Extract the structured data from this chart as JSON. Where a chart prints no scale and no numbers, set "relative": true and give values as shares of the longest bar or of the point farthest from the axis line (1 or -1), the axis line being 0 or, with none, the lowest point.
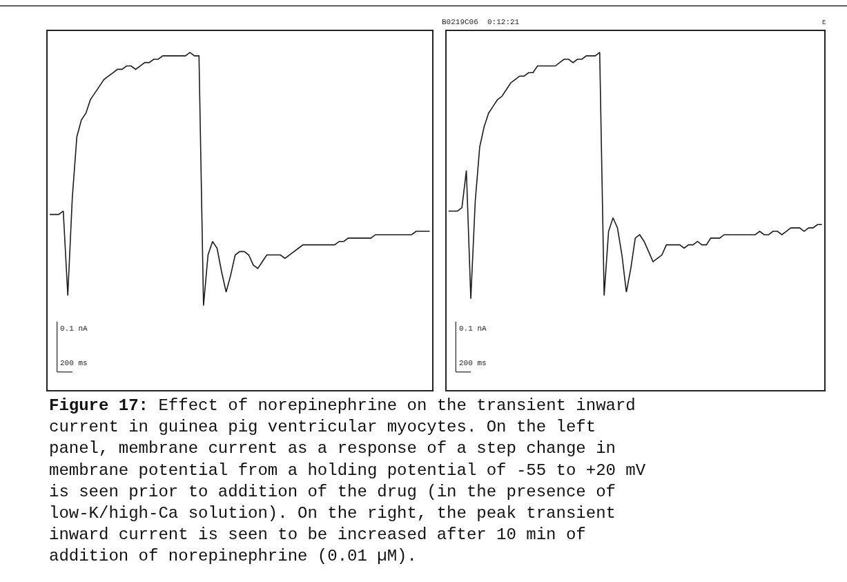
{
  "chart_data": [
    {
      "type": "line",
      "relative": true,
      "categories": [
        null,
        null,
        null,
        null,
        null,
        null,
        null,
        null,
        null,
        null,
        null,
        null,
        null,
        null,
        null,
        null,
        null,
        null,
        null,
        null,
        null,
        null,
        null,
        null,
        null,
        null,
        null,
        null,
        null,
        null,
        null,
        null,
        null,
        null,
        null,
        null,
        null,
        null,
        null,
        null,
        null,
        null,
        null,
        null,
        null,
        null,
        null,
        null,
        null,
        null,
        null,
        null,
        null,
        null,
        null,
        null,
        null,
        null,
        null,
        null,
        null,
        null,
        null,
        null,
        null,
        null,
        null,
        null,
        null,
        null,
        null,
        null,
        null,
        null,
        null,
        null,
        null,
        null,
        null,
        null,
        null,
        null,
        null,
        null,
        null
      ],
      "series": [
        {
          "color": "#1a1a1a",
          "values": [
            0.52,
            0.52,
            0.52,
            0.53,
            0.28,
            0.57,
            0.75,
            0.8,
            0.82,
            0.86,
            0.88,
            0.9,
            0.92,
            0.93,
            0.94,
            0.95,
            0.95,
            0.96,
            0.96,
            0.95,
            0.96,
            0.97,
            0.97,
            0.98,
            0.98,
            0.99,
            0.99,
            0.99,
            0.99,
            0.99,
            0.99,
            1.0,
            0.99,
            0.99,
            0.25,
            0.4,
            0.44,
            0.42,
            0.35,
            0.29,
            0.34,
            0.4,
            0.41,
            0.41,
            0.4,
            0.37,
            0.36,
            0.38,
            0.4,
            0.4,
            0.4,
            0.4,
            0.39,
            0.4,
            0.41,
            0.42,
            0.43,
            0.43,
            0.43,
            0.43,
            0.43,
            0.43,
            0.43,
            0.43,
            0.44,
            0.44,
            0.45,
            0.45,
            0.45,
            0.45,
            0.45,
            0.45,
            0.46,
            0.46,
            0.46,
            0.46,
            0.46,
            0.46,
            0.46,
            0.46,
            0.46,
            0.47,
            0.47,
            0.47,
            0.47
          ]
        }
      ],
      "annotations": [
        "0.1 nA",
        "200 ms",
        "Figure 17: Effect of norepinephrine on the transient inward current in guinea pig ventricular myocytes. On the left panel, membrane current as a response of a step change in membrane potential from a holding potential of -55 to +20 mV is seen prior to addition of the drug (in the presence of low-K/high-Ca solution). On the right, the peak transient inward current is seen to be increased after 10 min of addition of norepinephrine (0.01 µM)."
      ]
    },
    {
      "type": "line",
      "relative": true,
      "categories": [
        null,
        null,
        null,
        null,
        null,
        null,
        null,
        null,
        null,
        null,
        null,
        null,
        null,
        null,
        null,
        null,
        null,
        null,
        null,
        null,
        null,
        null,
        null,
        null,
        null,
        null,
        null,
        null,
        null,
        null,
        null,
        null,
        null,
        null,
        null,
        null,
        null,
        null,
        null,
        null,
        null,
        null,
        null,
        null,
        null,
        null,
        null,
        null,
        null,
        null,
        null,
        null,
        null,
        null,
        null,
        null,
        null,
        null,
        null,
        null,
        null,
        null,
        null,
        null,
        null,
        null,
        null,
        null,
        null,
        null,
        null,
        null,
        null,
        null,
        null,
        null,
        null,
        null,
        null,
        null,
        null,
        null,
        null,
        null,
        null
      ],
      "series": [
        {
          "color": "#1a1a1a",
          "values": [
            0.53,
            0.53,
            0.53,
            0.54,
            0.65,
            0.27,
            0.56,
            0.72,
            0.78,
            0.82,
            0.84,
            0.86,
            0.87,
            0.89,
            0.91,
            0.92,
            0.93,
            0.93,
            0.94,
            0.94,
            0.96,
            0.96,
            0.96,
            0.96,
            0.96,
            0.97,
            0.98,
            0.98,
            0.97,
            0.98,
            0.98,
            0.99,
            0.99,
            0.99,
            1.0,
            0.28,
            0.47,
            0.51,
            0.48,
            0.4,
            0.29,
            0.36,
            0.45,
            0.46,
            0.44,
            0.41,
            0.38,
            0.39,
            0.4,
            0.43,
            0.43,
            0.43,
            0.43,
            0.42,
            0.43,
            0.43,
            0.44,
            0.43,
            0.43,
            0.45,
            0.45,
            0.45,
            0.46,
            0.46,
            0.46,
            0.46,
            0.46,
            0.46,
            0.46,
            0.46,
            0.47,
            0.46,
            0.46,
            0.47,
            0.47,
            0.46,
            0.47,
            0.48,
            0.48,
            0.48,
            0.47,
            0.48,
            0.48,
            0.49,
            0.49
          ]
        }
      ],
      "annotations": [
        "B0219C06  0:12:21",
        "E",
        "0.1 nA",
        "200 ms"
      ]
    }
  ]
}
